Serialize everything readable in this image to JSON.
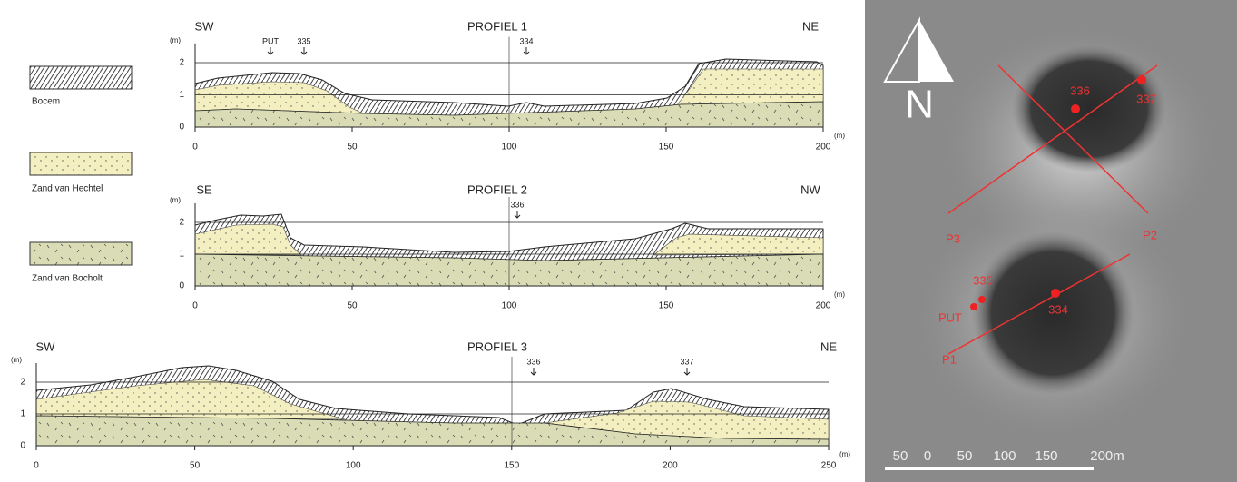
{
  "legend": [
    {
      "label": "Bocem"
    },
    {
      "label": "Zand van Hechtel"
    },
    {
      "label": "Zand van Bocholt"
    }
  ],
  "profiles": [
    {
      "title": "PROFIEL 1",
      "left": "SW",
      "right": "NE",
      "y_unit": "(m)",
      "x_unit": "(m)",
      "yticks": [
        0,
        1,
        2
      ],
      "xticks": [
        0,
        50,
        100,
        150,
        200
      ],
      "markers": [
        {
          "label": "PUT"
        },
        {
          "label": "335"
        },
        {
          "label": "334"
        }
      ]
    },
    {
      "title": "PROFIEL 2",
      "left": "SE",
      "right": "NW",
      "y_unit": "(m)",
      "x_unit": "(m)",
      "yticks": [
        0,
        1,
        2
      ],
      "xticks": [
        0,
        50,
        100,
        150,
        200
      ],
      "markers": [
        {
          "label": "336"
        }
      ]
    },
    {
      "title": "PROFIEL 3",
      "left": "SW",
      "right": "NE",
      "y_unit": "(m)",
      "x_unit": "(m)",
      "yticks": [
        0,
        1,
        2
      ],
      "xticks": [
        0,
        50,
        100,
        150,
        200,
        250
      ],
      "markers": [
        {
          "label": "336"
        },
        {
          "label": "337"
        }
      ]
    }
  ],
  "map": {
    "north": "N",
    "labels": [
      "336",
      "337",
      "P3",
      "P2",
      "335",
      "PUT",
      "334",
      "P1"
    ],
    "scale": [
      "50",
      "0",
      "50",
      "100",
      "150",
      "200m"
    ]
  }
}
